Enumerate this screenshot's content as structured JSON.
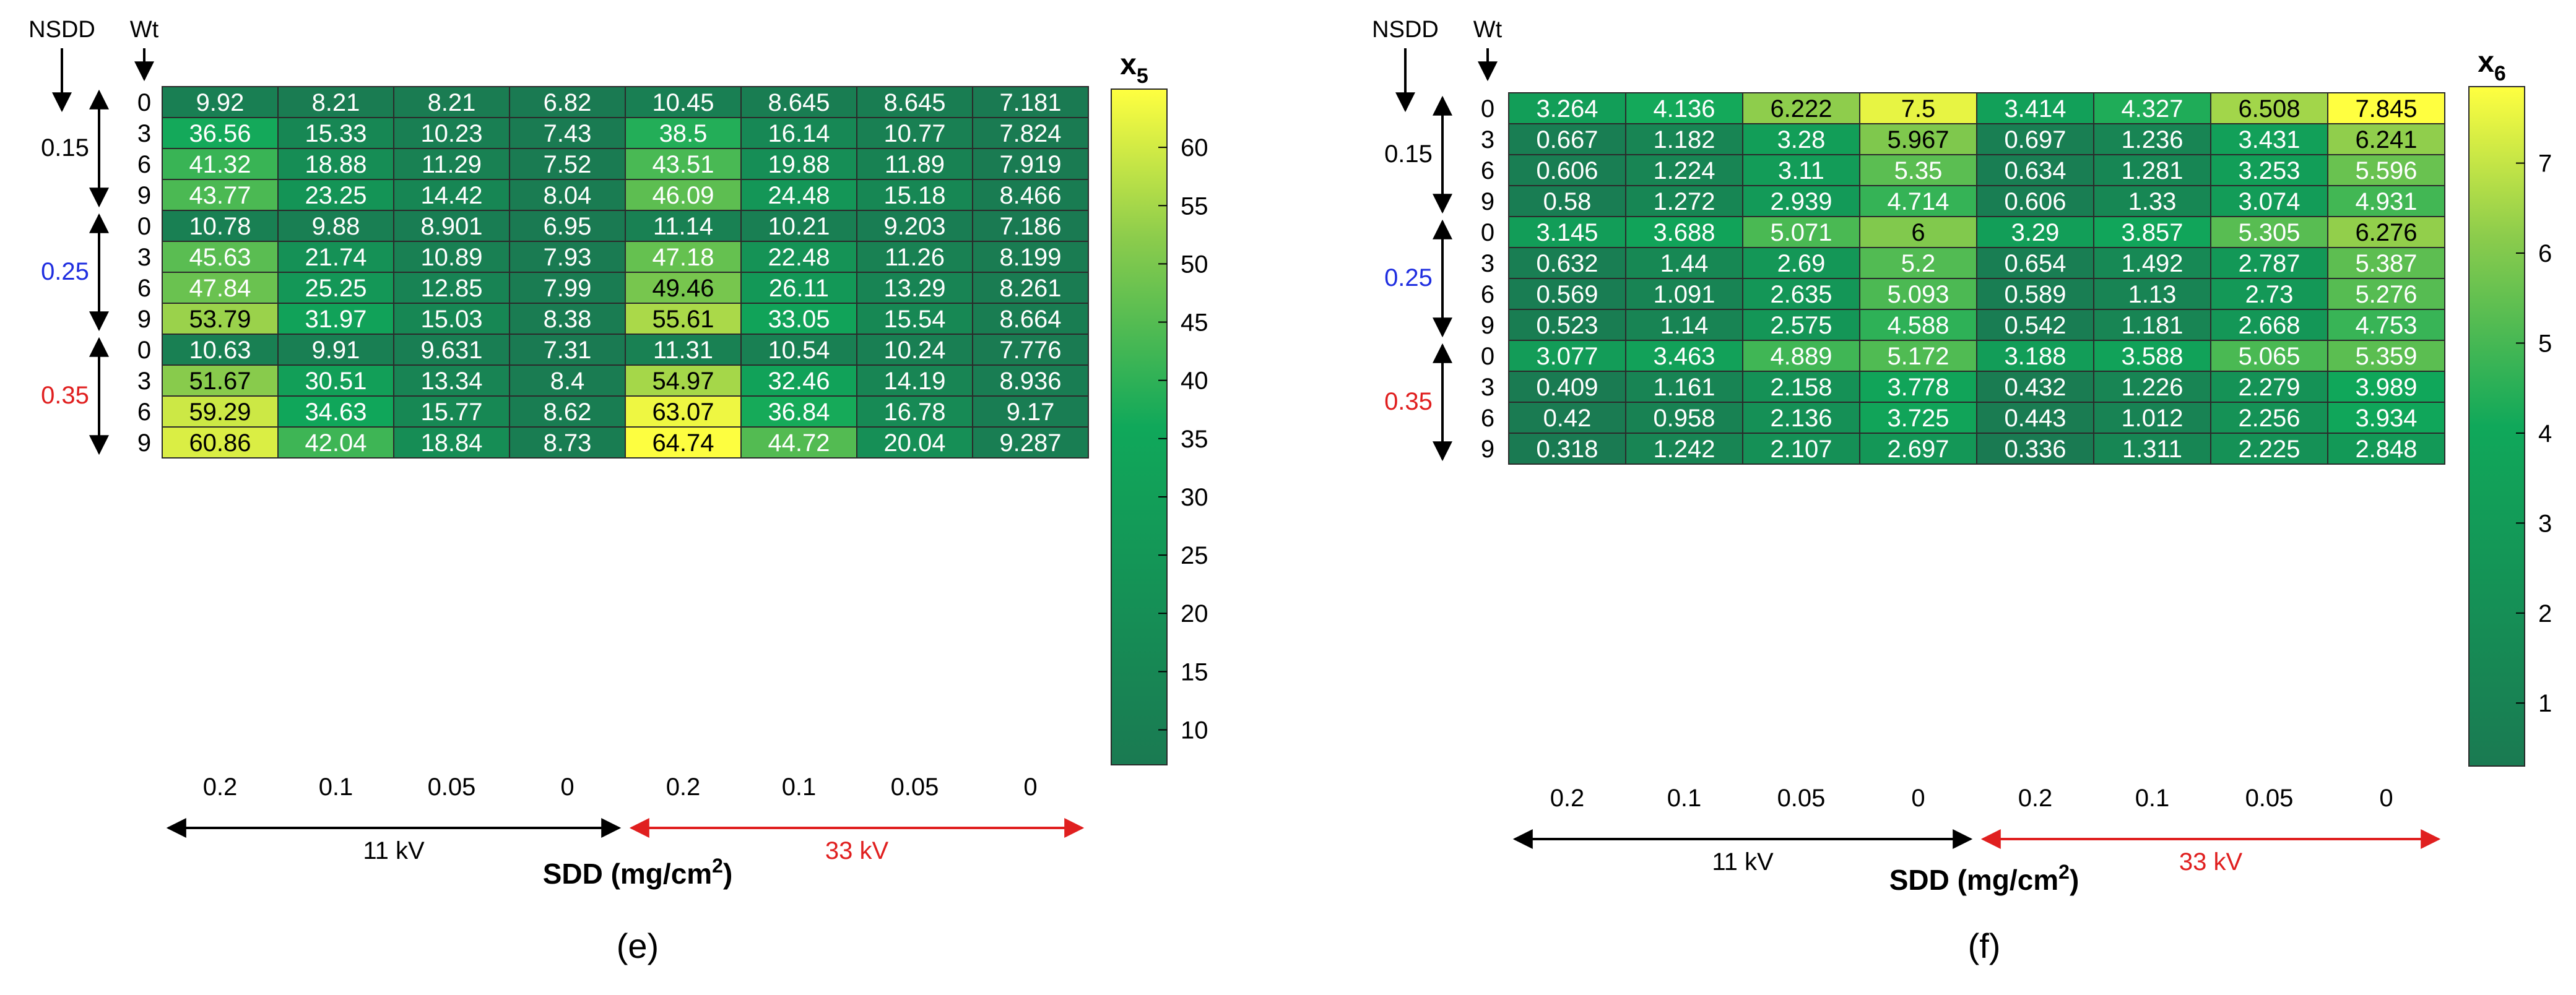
{
  "chart_data": [
    {
      "type": "heatmap",
      "panel_label": "(e)",
      "colorbar_label": "x",
      "colorbar_label_sub": "5",
      "colorbar_ticks": [
        10,
        15,
        20,
        25,
        30,
        35,
        40,
        45,
        50,
        55,
        60
      ],
      "color_range": [
        7,
        65
      ],
      "nsdd_header": "NSDD",
      "wt_header": "Wt",
      "nsdd_groups": [
        {
          "label": "0.15",
          "color": "#000000"
        },
        {
          "label": "0.25",
          "color": "#1f2ee0"
        },
        {
          "label": "0.35",
          "color": "#e01f1f"
        }
      ],
      "wt_labels": [
        "0",
        "3",
        "6",
        "9",
        "0",
        "3",
        "6",
        "9",
        "0",
        "3",
        "6",
        "9"
      ],
      "x_tick_labels": [
        "0.2",
        "0.1",
        "0.05",
        "0",
        "0.2",
        "0.1",
        "0.05",
        "0"
      ],
      "voltage_groups": [
        {
          "label": "11 kV",
          "color": "#000000"
        },
        {
          "label": "33 kV",
          "color": "#e01f1f"
        }
      ],
      "xlabel": "SDD (mg/cm",
      "xlabel_sup": "2",
      "xlabel_end": ")",
      "values": [
        [
          "9.92",
          "8.21",
          "8.21",
          "6.82",
          "10.45",
          "8.645",
          "8.645",
          "7.181"
        ],
        [
          "36.56",
          "15.33",
          "10.23",
          "7.43",
          "38.5",
          "16.14",
          "10.77",
          "7.824"
        ],
        [
          "41.32",
          "18.88",
          "11.29",
          "7.52",
          "43.51",
          "19.88",
          "11.89",
          "7.919"
        ],
        [
          "43.77",
          "23.25",
          "14.42",
          "8.04",
          "46.09",
          "24.48",
          "15.18",
          "8.466"
        ],
        [
          "10.78",
          "9.88",
          "8.901",
          "6.95",
          "11.14",
          "10.21",
          "9.203",
          "7.186"
        ],
        [
          "45.63",
          "21.74",
          "10.89",
          "7.93",
          "47.18",
          "22.48",
          "11.26",
          "8.199"
        ],
        [
          "47.84",
          "25.25",
          "12.85",
          "7.99",
          "49.46",
          "26.11",
          "13.29",
          "8.261"
        ],
        [
          "53.79",
          "31.97",
          "15.03",
          "8.38",
          "55.61",
          "33.05",
          "15.54",
          "8.664"
        ],
        [
          "10.63",
          "9.91",
          "9.631",
          "7.31",
          "11.31",
          "10.54",
          "10.24",
          "7.776"
        ],
        [
          "51.67",
          "30.51",
          "13.34",
          "8.4",
          "54.97",
          "32.46",
          "14.19",
          "8.936"
        ],
        [
          "59.29",
          "34.63",
          "15.77",
          "8.62",
          "63.07",
          "36.84",
          "16.78",
          "9.17"
        ],
        [
          "60.86",
          "42.04",
          "18.84",
          "8.73",
          "64.74",
          "44.72",
          "20.04",
          "9.287"
        ]
      ]
    },
    {
      "type": "heatmap",
      "panel_label": "(f)",
      "colorbar_label": "x",
      "colorbar_label_sub": "6",
      "colorbar_ticks": [
        1,
        2,
        3,
        4,
        5,
        6,
        7
      ],
      "color_range": [
        0.3,
        7.85
      ],
      "nsdd_header": "NSDD",
      "wt_header": "Wt",
      "nsdd_groups": [
        {
          "label": "0.15",
          "color": "#000000"
        },
        {
          "label": "0.25",
          "color": "#1f2ee0"
        },
        {
          "label": "0.35",
          "color": "#e01f1f"
        }
      ],
      "wt_labels": [
        "0",
        "3",
        "6",
        "9",
        "0",
        "3",
        "6",
        "9",
        "0",
        "3",
        "6",
        "9"
      ],
      "x_tick_labels": [
        "0.2",
        "0.1",
        "0.05",
        "0",
        "0.2",
        "0.1",
        "0.05",
        "0"
      ],
      "voltage_groups": [
        {
          "label": "11 kV",
          "color": "#000000"
        },
        {
          "label": "33 kV",
          "color": "#e01f1f"
        }
      ],
      "xlabel": "SDD (mg/cm",
      "xlabel_sup": "2",
      "xlabel_end": ")",
      "values": [
        [
          "3.264",
          "4.136",
          "6.222",
          "7.5",
          "3.414",
          "4.327",
          "6.508",
          "7.845"
        ],
        [
          "0.667",
          "1.182",
          "3.28",
          "5.967",
          "0.697",
          "1.236",
          "3.431",
          "6.241"
        ],
        [
          "0.606",
          "1.224",
          "3.11",
          "5.35",
          "0.634",
          "1.281",
          "3.253",
          "5.596"
        ],
        [
          "0.58",
          "1.272",
          "2.939",
          "4.714",
          "0.606",
          "1.33",
          "3.074",
          "4.931"
        ],
        [
          "3.145",
          "3.688",
          "5.071",
          "6",
          "3.29",
          "3.857",
          "5.305",
          "6.276"
        ],
        [
          "0.632",
          "1.44",
          "2.69",
          "5.2",
          "0.654",
          "1.492",
          "2.787",
          "5.387"
        ],
        [
          "0.569",
          "1.091",
          "2.635",
          "5.093",
          "0.589",
          "1.13",
          "2.73",
          "5.276"
        ],
        [
          "0.523",
          "1.14",
          "2.575",
          "4.588",
          "0.542",
          "1.181",
          "2.668",
          "4.753"
        ],
        [
          "3.077",
          "3.463",
          "4.889",
          "5.172",
          "3.188",
          "3.588",
          "5.065",
          "5.359"
        ],
        [
          "0.409",
          "1.161",
          "2.158",
          "3.778",
          "0.432",
          "1.226",
          "2.279",
          "3.989"
        ],
        [
          "0.42",
          "0.958",
          "2.136",
          "3.725",
          "0.443",
          "1.012",
          "2.256",
          "3.934"
        ],
        [
          "0.318",
          "1.242",
          "2.107",
          "2.697",
          "0.336",
          "1.311",
          "2.225",
          "2.848"
        ]
      ]
    }
  ]
}
